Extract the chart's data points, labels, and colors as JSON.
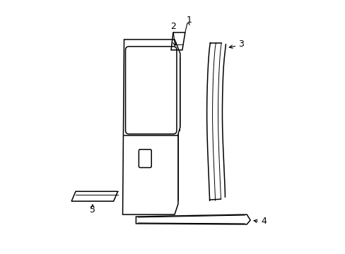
{
  "background_color": "#ffffff",
  "line_color": "#000000",
  "lw": 1.1,
  "lw_thin": 0.7,
  "fig_width": 4.89,
  "fig_height": 3.6,
  "dpi": 100
}
